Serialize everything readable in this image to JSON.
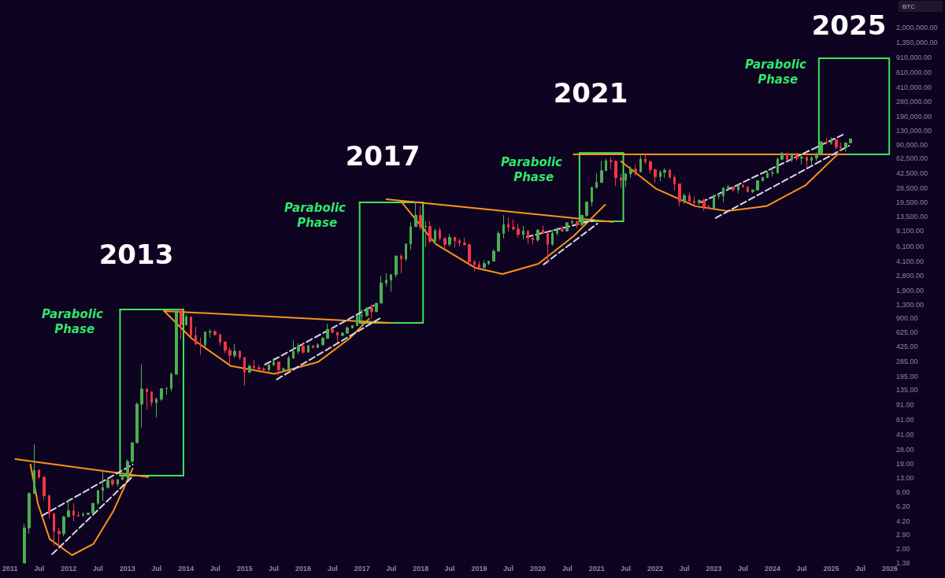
{
  "chart_data": {
    "type": "candlestick",
    "x": [
      "2011-04",
      "2011-05",
      "2011-06",
      "2011-07",
      "2011-08",
      "2011-09",
      "2011-10",
      "2011-11",
      "2011-12",
      "2012-01",
      "2012-02",
      "2012-03",
      "2012-04",
      "2012-05",
      "2012-06",
      "2012-07",
      "2012-08",
      "2012-09",
      "2012-10",
      "2012-11",
      "2012-12",
      "2013-01",
      "2013-02",
      "2013-03",
      "2013-04",
      "2013-05",
      "2013-06",
      "2013-07",
      "2013-08",
      "2013-09",
      "2013-10",
      "2013-11",
      "2013-12",
      "2014-01",
      "2014-02",
      "2014-03",
      "2014-04",
      "2014-05",
      "2014-06",
      "2014-07",
      "2014-08",
      "2014-09",
      "2014-10",
      "2014-11",
      "2014-12",
      "2015-01",
      "2015-02",
      "2015-03",
      "2015-04",
      "2015-05",
      "2015-06",
      "2015-07",
      "2015-08",
      "2015-09",
      "2015-10",
      "2015-11",
      "2015-12",
      "2016-01",
      "2016-02",
      "2016-03",
      "2016-04",
      "2016-05",
      "2016-06",
      "2016-07",
      "2016-08",
      "2016-09",
      "2016-10",
      "2016-11",
      "2016-12",
      "2017-01",
      "2017-02",
      "2017-03",
      "2017-04",
      "2017-05",
      "2017-06",
      "2017-07",
      "2017-08",
      "2017-09",
      "2017-10",
      "2017-11",
      "2017-12",
      "2018-01",
      "2018-02",
      "2018-03",
      "2018-04",
      "2018-05",
      "2018-06",
      "2018-07",
      "2018-08",
      "2018-09",
      "2018-10",
      "2018-11",
      "2018-12",
      "2019-01",
      "2019-02",
      "2019-03",
      "2019-04",
      "2019-05",
      "2019-06",
      "2019-07",
      "2019-08",
      "2019-09",
      "2019-10",
      "2019-11",
      "2019-12",
      "2020-01",
      "2020-02",
      "2020-03",
      "2020-04",
      "2020-05",
      "2020-06",
      "2020-07",
      "2020-08",
      "2020-09",
      "2020-10",
      "2020-11",
      "2020-12",
      "2021-01",
      "2021-02",
      "2021-03",
      "2021-04",
      "2021-05",
      "2021-06",
      "2021-07",
      "2021-08",
      "2021-09",
      "2021-10",
      "2021-11",
      "2021-12",
      "2022-01",
      "2022-02",
      "2022-03",
      "2022-04",
      "2022-05",
      "2022-06",
      "2022-07",
      "2022-08",
      "2022-09",
      "2022-10",
      "2022-11",
      "2022-12",
      "2023-01",
      "2023-02",
      "2023-03",
      "2023-04",
      "2023-05",
      "2023-06",
      "2023-07",
      "2023-08",
      "2023-09",
      "2023-10",
      "2023-11",
      "2023-12",
      "2024-01",
      "2024-02",
      "2024-03",
      "2024-04",
      "2024-05",
      "2024-06",
      "2024-07",
      "2024-08",
      "2024-09",
      "2024-10",
      "2024-11",
      "2024-12",
      "2025-01",
      "2025-02",
      "2025-03",
      "2025-04",
      "2025-05"
    ],
    "ohlc": [
      [
        1.38,
        3.9,
        1.38,
        3.5
      ],
      [
        3.5,
        9.0,
        3.0,
        8.7
      ],
      [
        8.7,
        31.9,
        8.6,
        16.1
      ],
      [
        16.1,
        16.6,
        12.8,
        13.4
      ],
      [
        13.4,
        13.8,
        7.3,
        8.2
      ],
      [
        8.2,
        8.5,
        4.5,
        5.1
      ],
      [
        5.1,
        5.2,
        2.2,
        3.2
      ],
      [
        3.2,
        3.5,
        2.0,
        3.0
      ],
      [
        3.0,
        4.8,
        2.8,
        4.7
      ],
      [
        4.7,
        7.4,
        4.7,
        5.5
      ],
      [
        5.5,
        6.7,
        4.2,
        4.9
      ],
      [
        4.9,
        5.4,
        4.7,
        4.8
      ],
      [
        4.9,
        5.3,
        4.7,
        5.0
      ],
      [
        5.0,
        5.2,
        4.9,
        5.2
      ],
      [
        5.2,
        6.8,
        5.2,
        6.7
      ],
      [
        6.7,
        9.6,
        6.4,
        9.4
      ],
      [
        9.4,
        15.4,
        7.1,
        10.2
      ],
      [
        10.2,
        12.9,
        9.9,
        12.4
      ],
      [
        12.4,
        12.8,
        10.6,
        11.2
      ],
      [
        11.2,
        12.6,
        10.5,
        12.6
      ],
      [
        12.6,
        13.7,
        12.5,
        13.5
      ],
      [
        13.5,
        21.4,
        13.1,
        20.4
      ],
      [
        20.4,
        34,
        19.6,
        33.4
      ],
      [
        33.4,
        97,
        33.2,
        93
      ],
      [
        93,
        266,
        50,
        139
      ],
      [
        139,
        140,
        80,
        129
      ],
      [
        129,
        130,
        88,
        97
      ],
      [
        97,
        111,
        65,
        106
      ],
      [
        106,
        140,
        101,
        140
      ],
      [
        140,
        146,
        119,
        141
      ],
      [
        141,
        215,
        130,
        206
      ],
      [
        206,
        1163,
        200,
        1129
      ],
      [
        1129,
        1150,
        522,
        757
      ],
      [
        757,
        1000,
        750,
        935
      ],
      [
        935,
        940,
        550,
        573
      ],
      [
        573,
        720,
        440,
        457
      ],
      [
        457,
        545,
        340,
        447
      ],
      [
        447,
        634,
        420,
        628
      ],
      [
        628,
        680,
        540,
        636
      ],
      [
        636,
        660,
        565,
        586
      ],
      [
        586,
        600,
        440,
        481
      ],
      [
        481,
        490,
        360,
        387
      ],
      [
        387,
        420,
        275,
        338
      ],
      [
        338,
        460,
        315,
        378
      ],
      [
        378,
        383,
        300,
        320
      ],
      [
        320,
        320,
        152,
        217
      ],
      [
        217,
        267,
        210,
        254
      ],
      [
        254,
        299,
        236,
        244
      ],
      [
        244,
        262,
        214,
        236
      ],
      [
        236,
        247,
        225,
        230
      ],
      [
        230,
        268,
        220,
        264
      ],
      [
        264,
        317,
        253,
        284
      ],
      [
        284,
        285,
        199,
        230
      ],
      [
        230,
        245,
        225,
        237
      ],
      [
        237,
        335,
        236,
        314
      ],
      [
        314,
        502,
        310,
        377
      ],
      [
        377,
        468,
        350,
        430
      ],
      [
        430,
        463,
        355,
        368
      ],
      [
        368,
        448,
        365,
        437
      ],
      [
        437,
        439,
        407,
        416
      ],
      [
        416,
        466,
        413,
        448
      ],
      [
        448,
        550,
        437,
        531
      ],
      [
        531,
        780,
        525,
        674
      ],
      [
        674,
        705,
        609,
        624
      ],
      [
        624,
        626,
        475,
        573
      ],
      [
        573,
        630,
        565,
        609
      ],
      [
        609,
        730,
        605,
        700
      ],
      [
        700,
        750,
        690,
        745
      ],
      [
        745,
        975,
        745,
        963
      ],
      [
        963,
        1160,
        750,
        970
      ],
      [
        970,
        1210,
        935,
        1190
      ],
      [
        1190,
        1300,
        890,
        1080
      ],
      [
        1080,
        1350,
        1060,
        1350
      ],
      [
        1350,
        2760,
        1350,
        2300
      ],
      [
        2300,
        2980,
        2100,
        2480
      ],
      [
        2480,
        2920,
        1830,
        2875
      ],
      [
        2875,
        4760,
        2670,
        4700
      ],
      [
        4700,
        4980,
        2970,
        4340
      ],
      [
        4340,
        6470,
        4110,
        6470
      ],
      [
        6470,
        11500,
        5520,
        10230
      ],
      [
        10230,
        19800,
        10230,
        13860
      ],
      [
        13860,
        17700,
        9400,
        10220
      ],
      [
        10220,
        11800,
        6000,
        10330
      ],
      [
        10330,
        11700,
        6600,
        6930
      ],
      [
        6930,
        9750,
        6430,
        9250
      ],
      [
        9250,
        10000,
        7060,
        7490
      ],
      [
        7490,
        7760,
        5760,
        6400
      ],
      [
        6400,
        8480,
        6070,
        7730
      ],
      [
        7730,
        7760,
        5880,
        7030
      ],
      [
        7030,
        7400,
        6100,
        6630
      ],
      [
        6630,
        7680,
        6210,
        6370
      ],
      [
        6370,
        6540,
        3650,
        4040
      ],
      [
        4040,
        4240,
        3140,
        3740
      ],
      [
        3740,
        4100,
        3350,
        3460
      ],
      [
        3460,
        4190,
        3400,
        3850
      ],
      [
        3850,
        4130,
        3700,
        4110
      ],
      [
        4110,
        5620,
        4080,
        5350
      ],
      [
        5350,
        9100,
        5330,
        8570
      ],
      [
        8570,
        13880,
        7450,
        10820
      ],
      [
        10820,
        13150,
        9060,
        10080
      ],
      [
        10080,
        12330,
        9330,
        9630
      ],
      [
        9630,
        10950,
        7700,
        8300
      ],
      [
        8300,
        10370,
        7300,
        9150
      ],
      [
        9150,
        9270,
        6520,
        7570
      ],
      [
        7570,
        7750,
        6430,
        7190
      ],
      [
        7190,
        9580,
        6860,
        9350
      ],
      [
        9350,
        10500,
        8450,
        8540
      ],
      [
        8540,
        9190,
        3850,
        6410
      ],
      [
        6410,
        9460,
        6150,
        8620
      ],
      [
        8620,
        10070,
        8120,
        9450
      ],
      [
        9450,
        10380,
        8930,
        9140
      ],
      [
        9140,
        11440,
        8980,
        11350
      ],
      [
        11350,
        12470,
        10960,
        11650
      ],
      [
        11650,
        12070,
        9880,
        10780
      ],
      [
        10780,
        14100,
        10380,
        13800
      ],
      [
        13800,
        19860,
        13220,
        19700
      ],
      [
        19700,
        29300,
        17570,
        28990
      ],
      [
        28990,
        41950,
        28130,
        33110
      ],
      [
        33110,
        58350,
        32300,
        45200
      ],
      [
        45200,
        61780,
        45000,
        58800
      ],
      [
        58800,
        64850,
        47000,
        57700
      ],
      [
        57700,
        59500,
        30000,
        37300
      ],
      [
        37300,
        41300,
        28800,
        35040
      ],
      [
        35040,
        42300,
        29300,
        41460
      ],
      [
        41460,
        50500,
        37330,
        47100
      ],
      [
        47100,
        52900,
        39600,
        43800
      ],
      [
        43800,
        67000,
        43300,
        61300
      ],
      [
        61300,
        69000,
        53300,
        57000
      ],
      [
        57000,
        59100,
        42000,
        46200
      ],
      [
        46200,
        47900,
        32900,
        38500
      ],
      [
        38500,
        45800,
        34300,
        43200
      ],
      [
        43200,
        48200,
        37200,
        45500
      ],
      [
        45500,
        47400,
        37600,
        37700
      ],
      [
        37700,
        40000,
        26700,
        31800
      ],
      [
        31800,
        31900,
        17600,
        19900
      ],
      [
        19900,
        24700,
        18800,
        23300
      ],
      [
        23300,
        25200,
        19600,
        20000
      ],
      [
        20000,
        22800,
        18150,
        19400
      ],
      [
        19400,
        21100,
        18200,
        20500
      ],
      [
        20500,
        21500,
        15500,
        17200
      ],
      [
        17200,
        18400,
        16300,
        16550
      ],
      [
        16550,
        23950,
        16500,
        23100
      ],
      [
        23100,
        25250,
        21400,
        23150
      ],
      [
        23150,
        29200,
        19600,
        28500
      ],
      [
        28500,
        31000,
        26900,
        29250
      ],
      [
        29250,
        29800,
        25800,
        27200
      ],
      [
        27200,
        31400,
        24800,
        30500
      ],
      [
        30500,
        31800,
        28900,
        29200
      ],
      [
        29200,
        30200,
        25400,
        25950
      ],
      [
        25950,
        27500,
        24900,
        27000
      ],
      [
        27000,
        35200,
        26600,
        34500
      ],
      [
        34500,
        38400,
        34100,
        37700
      ],
      [
        37700,
        44700,
        37600,
        42300
      ],
      [
        42300,
        48900,
        38500,
        42600
      ],
      [
        42600,
        64000,
        41900,
        61100
      ],
      [
        61100,
        73800,
        59300,
        71300
      ],
      [
        71300,
        72700,
        59200,
        60700
      ],
      [
        60700,
        71900,
        56600,
        67500
      ],
      [
        67500,
        72000,
        58400,
        62700
      ],
      [
        62700,
        70000,
        53500,
        64600
      ],
      [
        64600,
        65600,
        49100,
        58900
      ],
      [
        58900,
        66500,
        52600,
        63300
      ],
      [
        63300,
        73600,
        58900,
        70200
      ],
      [
        70200,
        99600,
        66800,
        96400
      ],
      [
        96400,
        108300,
        90500,
        93400
      ],
      [
        93400,
        109400,
        89200,
        102400
      ],
      [
        102400,
        102500,
        78200,
        84300
      ],
      [
        84300,
        95000,
        76600,
        82500
      ],
      [
        82500,
        95800,
        74400,
        94200
      ],
      [
        94200,
        105000,
        93300,
        104800
      ]
    ],
    "colors": [
      "#4caf50",
      "#4caf50",
      "#4caf50",
      "#f23645",
      "#f23645",
      "#f23645",
      "#f23645",
      "#f23645",
      "#4caf50",
      "#4caf50",
      "#f23645",
      "#f23645",
      "#4caf50",
      "#4caf50",
      "#4caf50",
      "#4caf50",
      "#4caf50",
      "#4caf50",
      "#f23645",
      "#4caf50",
      "#4caf50",
      "#4caf50",
      "#4caf50",
      "#4caf50",
      "#4caf50",
      "#f23645",
      "#f23645",
      "#4caf50",
      "#4caf50",
      "#4caf50",
      "#4caf50",
      "#4caf50",
      "#f23645",
      "#4caf50",
      "#f23645",
      "#f23645",
      "#f23645",
      "#4caf50",
      "#4caf50",
      "#f23645",
      "#f23645",
      "#f23645",
      "#f23645",
      "#4caf50",
      "#f23645",
      "#f23645",
      "#4caf50",
      "#f23645",
      "#f23645",
      "#f23645",
      "#4caf50",
      "#4caf50",
      "#f23645",
      "#4caf50",
      "#4caf50",
      "#4caf50",
      "#4caf50",
      "#f23645",
      "#4caf50",
      "#f23645",
      "#4caf50",
      "#4caf50",
      "#4caf50",
      "#f23645",
      "#f23645",
      "#4caf50",
      "#4caf50",
      "#4caf50",
      "#4caf50",
      "#4caf50",
      "#4caf50",
      "#f23645",
      "#4caf50",
      "#4caf50",
      "#4caf50",
      "#4caf50",
      "#4caf50",
      "#f23645",
      "#4caf50",
      "#4caf50",
      "#4caf50",
      "#f23645",
      "#4caf50",
      "#f23645",
      "#4caf50",
      "#f23645",
      "#f23645",
      "#4caf50",
      "#f23645",
      "#f23645",
      "#f23645",
      "#f23645",
      "#f23645",
      "#f23645",
      "#4caf50",
      "#4caf50",
      "#4caf50",
      "#4caf50",
      "#4caf50",
      "#f23645",
      "#f23645",
      "#f23645",
      "#4caf50",
      "#f23645",
      "#f23645",
      "#4caf50",
      "#f23645",
      "#f23645",
      "#4caf50",
      "#4caf50",
      "#f23645",
      "#4caf50",
      "#4caf50",
      "#f23645",
      "#4caf50",
      "#4caf50",
      "#4caf50",
      "#4caf50",
      "#4caf50",
      "#4caf50",
      "#f23645",
      "#f23645",
      "#f23645",
      "#4caf50",
      "#4caf50",
      "#f23645",
      "#4caf50",
      "#f23645",
      "#f23645",
      "#f23645",
      "#4caf50",
      "#4caf50",
      "#f23645",
      "#f23645",
      "#f23645",
      "#4caf50",
      "#f23645",
      "#f23645",
      "#4caf50",
      "#f23645",
      "#f23645",
      "#4caf50",
      "#4caf50",
      "#4caf50",
      "#4caf50",
      "#f23645",
      "#4caf50",
      "#f23645",
      "#f23645",
      "#4caf50",
      "#4caf50",
      "#4caf50",
      "#4caf50",
      "#4caf50",
      "#4caf50",
      "#4caf50",
      "#f23645",
      "#4caf50",
      "#f23645",
      "#4caf50",
      "#f23645",
      "#4caf50",
      "#4caf50",
      "#4caf50",
      "#f23645",
      "#4caf50",
      "#f23645",
      "#f23645",
      "#4caf50",
      "#4caf50"
    ],
    "series": [
      {
        "type": "line",
        "color": "#3ee35a",
        "x": [
          "2012-11-16",
          "2013-12-16"
        ],
        "values": [
          1143,
          1143
        ]
      },
      {
        "type": "line",
        "color": "#3ee35a",
        "x": [
          "2012-11-16",
          "2013-12-16"
        ],
        "values": [
          14.0,
          14.0
        ]
      },
      {
        "type": "line",
        "color": "#3ee35a",
        "x": [
          "2012-11-16",
          "2012-11-16"
        ],
        "values": [
          14.0,
          1143
        ]
      },
      {
        "type": "line",
        "color": "#3ee35a",
        "x": [
          "2013-12-16",
          "2013-12-16"
        ],
        "values": [
          14.0,
          1143
        ]
      },
      {
        "type": "line",
        "color": "#3ee35a",
        "x": [
          "2016-12-17",
          "2018-01-16"
        ],
        "values": [
          19500,
          19500
        ]
      },
      {
        "type": "line",
        "color": "#3ee35a",
        "x": [
          "2016-12-17",
          "2018-01-16"
        ],
        "values": [
          800,
          800
        ]
      },
      {
        "type": "line",
        "color": "#3ee35a",
        "x": [
          "2016-12-17",
          "2016-12-17"
        ],
        "values": [
          800,
          19500
        ]
      },
      {
        "type": "line",
        "color": "#3ee35a",
        "x": [
          "2018-01-16",
          "2018-01-16"
        ],
        "values": [
          800,
          19500
        ]
      },
      {
        "type": "line",
        "color": "#3ee35a",
        "x": [
          "2020-09-16",
          "2021-06-16"
        ],
        "values": [
          72000,
          72000
        ]
      },
      {
        "type": "line",
        "color": "#3ee35a",
        "x": [
          "2020-09-16",
          "2021-06-16"
        ],
        "values": [
          11800,
          11800
        ]
      },
      {
        "type": "line",
        "color": "#3ee35a",
        "x": [
          "2020-09-16",
          "2020-09-16"
        ],
        "values": [
          11800,
          72000
        ]
      },
      {
        "type": "line",
        "color": "#3ee35a",
        "x": [
          "2021-06-16",
          "2021-06-16"
        ],
        "values": [
          11800,
          72000
        ]
      },
      {
        "type": "line",
        "color": "#3ee35a",
        "x": [
          "2024-10-16",
          "2025-12-28"
        ],
        "values": [
          887000,
          887000
        ]
      },
      {
        "type": "line",
        "color": "#3ee35a",
        "x": [
          "2024-10-16",
          "2025-12-28"
        ],
        "values": [
          69700,
          69700
        ]
      },
      {
        "type": "line",
        "color": "#3ee35a",
        "x": [
          "2024-10-16",
          "2024-10-16"
        ],
        "values": [
          69700,
          887000
        ]
      },
      {
        "type": "line",
        "color": "#3ee35a",
        "x": [
          "2025-12-28",
          "2025-12-28"
        ],
        "values": [
          69700,
          887000
        ]
      },
      {
        "type": "line",
        "color": "#f7931a",
        "x": [
          "2011-02-03",
          "2013-05-10"
        ],
        "values": [
          21.7,
          13.5
        ]
      },
      {
        "type": "line",
        "color": "#f7931a",
        "x": [
          "2013-08-18",
          "2017-06-25"
        ],
        "values": [
          1096,
          800
        ]
      },
      {
        "type": "line",
        "color": "#f7931a",
        "x": [
          "2017-06-02",
          "2021-04-12"
        ],
        "values": [
          21200,
          11600
        ]
      },
      {
        "type": "line",
        "color": "#f7931a",
        "x": [
          "2020-08-10",
          "2025-03-28"
        ],
        "values": [
          69700,
          69700
        ]
      },
      {
        "type": "line",
        "color": "#f7931a",
        "x": [
          "2011-05-08",
          "2011-06-24",
          "2011-09-05",
          "2012-01-22",
          "2012-06-04",
          "2012-10-04",
          "2013-02-03"
        ],
        "values": [
          18.8,
          6.6,
          2.6,
          1.7,
          2.3,
          5.4,
          16.9
        ]
      },
      {
        "type": "line",
        "color": "#f7931a",
        "x": [
          "2013-08-18",
          "2014-02-06",
          "2014-10-08",
          "2015-07-05",
          "2016-04-01",
          "2016-10-14",
          "2017-02-13"
        ],
        "values": [
          1096,
          528,
          255,
          207,
          283,
          528,
          891
        ]
      },
      {
        "type": "line",
        "color": "#f7931a",
        "x": [
          "2017-08-29",
          "2018-04-05",
          "2018-12-05",
          "2019-05-26",
          "2020-01-04",
          "2020-08-10",
          "2021-02-23"
        ],
        "values": [
          20300,
          6460,
          3450,
          2920,
          3830,
          7950,
          18300
        ]
      },
      {
        "type": "line",
        "color": "#f7931a",
        "x": [
          "2021-06-02",
          "2022-01-08",
          "2022-09-08",
          "2023-03-26",
          "2023-11-24",
          "2024-07-26",
          "2025-02-10"
        ],
        "values": [
          57700,
          27800,
          17600,
          15500,
          17600,
          30800,
          69700
        ]
      },
      {
        "type": "line",
        "color": "#d9d9e3",
        "line_style": "dashed",
        "x": [
          "2011-07-20",
          "2013-02-03"
        ],
        "values": [
          4.84,
          18.8
        ]
      },
      {
        "type": "line",
        "color": "#d9d9e3",
        "line_style": "dashed",
        "x": [
          "2011-09-20",
          "2013-01-25"
        ],
        "values": [
          1.74,
          13.2
        ]
      },
      {
        "type": "line",
        "color": "#d9d9e3",
        "line_style": "dashed",
        "x": [
          "2015-05-08",
          "2017-03-15"
        ],
        "values": [
          265,
          1270
        ]
      },
      {
        "type": "line",
        "color": "#d9d9e3",
        "line_style": "dashed",
        "x": [
          "2015-07-20",
          "2017-05-03"
        ],
        "values": [
          179,
          929
        ]
      },
      {
        "type": "line",
        "color": "#d9d9e3",
        "line_style": "dashed",
        "x": [
          "2019-10-23",
          "2020-12-13"
        ],
        "values": [
          7800,
          12100
        ]
      },
      {
        "type": "line",
        "color": "#d9d9e3",
        "line_style": "dashed",
        "x": [
          "2020-02-06",
          "2021-01-05"
        ],
        "values": [
          3760,
          11100
        ]
      },
      {
        "type": "line",
        "color": "#d9d9e3",
        "line_style": "dashed",
        "x": [
          "2022-10-13",
          "2025-03-14"
        ],
        "values": [
          19500,
          117000
        ]
      },
      {
        "type": "line",
        "color": "#d9d9e3",
        "line_style": "dashed",
        "x": [
          "2023-01-12",
          "2025-04-22"
        ],
        "values": [
          12900,
          87500
        ]
      }
    ],
    "marker": "none",
    "log": true,
    "xlim": [
      "2011-01-01",
      "2026-01-01"
    ],
    "xticks": [
      {
        "value": "2011-01-01",
        "label": "2011"
      },
      {
        "value": "2011-07-01",
        "label": "Jul"
      },
      {
        "value": "2012-01-01",
        "label": "2012"
      },
      {
        "value": "2012-07-01",
        "label": "Jul"
      },
      {
        "value": "2013-01-01",
        "label": "2013"
      },
      {
        "value": "2013-07-01",
        "label": "Jul"
      },
      {
        "value": "2014-01-01",
        "label": "2014"
      },
      {
        "value": "2014-07-01",
        "label": "Jul"
      },
      {
        "value": "2015-01-01",
        "label": "2015"
      },
      {
        "value": "2015-07-01",
        "label": "Jul"
      },
      {
        "value": "2016-01-01",
        "label": "2016"
      },
      {
        "value": "2016-07-01",
        "label": "Jul"
      },
      {
        "value": "2017-01-01",
        "label": "2017"
      },
      {
        "value": "2017-07-01",
        "label": "Jul"
      },
      {
        "value": "2018-01-01",
        "label": "2018"
      },
      {
        "value": "2018-07-01",
        "label": "Jul"
      },
      {
        "value": "2019-01-01",
        "label": "2019"
      },
      {
        "value": "2019-07-01",
        "label": "Jul"
      },
      {
        "value": "2020-01-01",
        "label": "2020"
      },
      {
        "value": "2020-07-01",
        "label": "Jul"
      },
      {
        "value": "2021-01-01",
        "label": "2021"
      },
      {
        "value": "2021-07-01",
        "label": "Jul"
      },
      {
        "value": "2022-01-01",
        "label": "2022"
      },
      {
        "value": "2022-07-01",
        "label": "Jul"
      },
      {
        "value": "2023-01-01",
        "label": "2023"
      },
      {
        "value": "2023-07-01",
        "label": "Jul"
      },
      {
        "value": "2024-01-01",
        "label": "2024"
      },
      {
        "value": "2024-07-01",
        "label": "Jul"
      },
      {
        "value": "2025-01-01",
        "label": "2025"
      },
      {
        "value": "2025-07-01",
        "label": "Jul"
      },
      {
        "value": "2026-01-01",
        "label": "2026"
      }
    ],
    "ylim": [
      1.38,
      2000000
    ],
    "yticks": [
      1.38,
      {
        "value": 2,
        "label": "2.00"
      },
      {
        "value": 2.9,
        "label": "2.90"
      },
      {
        "value": 4.2,
        "label": "4.20"
      },
      {
        "value": 6.2,
        "label": "6.20"
      },
      {
        "value": 9,
        "label": "9.00"
      },
      {
        "value": 13,
        "label": "13.00"
      },
      {
        "value": 19,
        "label": "19.00"
      },
      {
        "value": 28,
        "label": "28.00"
      },
      {
        "value": 41,
        "label": "41.00"
      },
      {
        "value": 61,
        "label": "61.00"
      },
      {
        "value": 91,
        "label": "91.00"
      },
      {
        "value": 135,
        "label": "135.00"
      },
      {
        "value": 195,
        "label": "195.00"
      },
      {
        "value": 285,
        "label": "285.00"
      },
      {
        "value": 425,
        "label": "425.00"
      },
      {
        "value": 625,
        "label": "625.00"
      },
      {
        "value": 900,
        "label": "900.00"
      },
      {
        "value": 1300,
        "label": "1,300.00"
      },
      {
        "value": 1900,
        "label": "1,900.00"
      },
      {
        "value": 2800,
        "label": "2,800.00"
      },
      {
        "value": 4100,
        "label": "4,100.00"
      },
      {
        "value": 6100,
        "label": "6,100.00"
      },
      {
        "value": 9100,
        "label": "9,100.00"
      },
      {
        "value": 13500,
        "label": "13,500.00"
      },
      {
        "value": 19500,
        "label": "19,500.00"
      },
      {
        "value": 28500,
        "label": "28,500.00"
      },
      {
        "value": 42500,
        "label": "42,500.00"
      },
      {
        "value": 62500,
        "label": "62,500.00"
      },
      {
        "value": 90000,
        "label": "90,000.00"
      },
      {
        "value": 130000,
        "label": "130,000.00"
      },
      {
        "value": 190000,
        "label": "190,000.00"
      },
      {
        "value": 280000,
        "label": "280,000.00"
      },
      {
        "value": 410000,
        "label": "410,000.00"
      },
      {
        "value": 610000,
        "label": "610,000.00"
      },
      {
        "value": 910000,
        "label": "910,000.00"
      },
      {
        "value": 1350000,
        "label": "1,350,000.00"
      },
      {
        "value": 2000000,
        "label": "2,000,000.00"
      }
    ],
    "annotations": [
      "2013",
      "Parabolic Phase",
      "2017",
      "Parabolic Phase",
      "2021",
      "Parabolic Phase",
      "2025",
      "Parabolic Phase",
      "BTC"
    ]
  }
}
